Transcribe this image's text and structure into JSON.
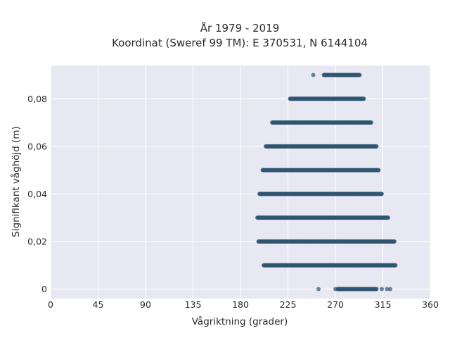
{
  "chart_data": {
    "type": "scatter",
    "title": "År 1979 - 2019",
    "subtitle": "Koordinat (Sweref 99 TM): E 370531, N 6144104",
    "xlabel": "Vågriktning (grader)",
    "ylabel": "Signifikant våghöjd (m)",
    "xlim": [
      0,
      360
    ],
    "ylim": [
      -0.004,
      0.094
    ],
    "x_ticks": [
      0,
      45,
      90,
      135,
      180,
      225,
      270,
      315,
      360
    ],
    "x_tick_labels": [
      "0",
      "45",
      "90",
      "135",
      "180",
      "225",
      "270",
      "315",
      "360"
    ],
    "y_ticks": [
      0,
      0.02,
      0.04,
      0.06,
      0.08
    ],
    "y_tick_labels": [
      "0",
      "0,02",
      "0,04",
      "0,06",
      "0,08"
    ],
    "grid": true,
    "marker_color": "#2f5670",
    "plot_background": "#e8e8f2",
    "bands": [
      {
        "y": 0.09,
        "x_from": 259,
        "x_to": 293,
        "isolated_x": [
          249
        ]
      },
      {
        "y": 0.08,
        "x_from": 227,
        "x_to": 297
      },
      {
        "y": 0.07,
        "x_from": 210,
        "x_to": 304
      },
      {
        "y": 0.06,
        "x_from": 204,
        "x_to": 309
      },
      {
        "y": 0.05,
        "x_from": 201,
        "x_to": 311
      },
      {
        "y": 0.04,
        "x_from": 198,
        "x_to": 314
      },
      {
        "y": 0.03,
        "x_from": 196,
        "x_to": 320
      },
      {
        "y": 0.02,
        "x_from": 197,
        "x_to": 326
      },
      {
        "y": 0.01,
        "x_from": 202,
        "x_to": 327
      },
      {
        "y": 0.0,
        "x_from": 272,
        "x_to": 309,
        "isolated_x": [
          254,
          270,
          273,
          314,
          319,
          322
        ]
      }
    ]
  }
}
